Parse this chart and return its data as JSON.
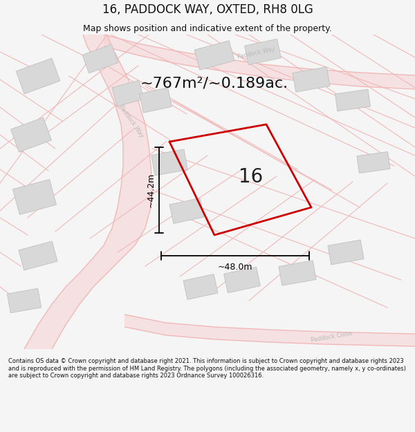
{
  "title": "16, PADDOCK WAY, OXTED, RH8 0LG",
  "subtitle": "Map shows position and indicative extent of the property.",
  "area_text": "~767m²/~0.189ac.",
  "dim_width": "~48.0m",
  "dim_height": "~44.2m",
  "property_number": "16",
  "footer": "Contains OS data © Crown copyright and database right 2021. This information is subject to Crown copyright and database rights 2023 and is reproduced with the permission of HM Land Registry. The polygons (including the associated geometry, namely x, y co-ordinates) are subject to Crown copyright and database rights 2023 Ordnance Survey 100026316.",
  "bg_color": "#f5f5f5",
  "map_bg": "#f9f9f9",
  "road_line_color": "#f0b8b8",
  "road_fill_color": "#f5d5d5",
  "building_color": "#d8d8d8",
  "building_edge": "#c0c0c0",
  "property_color": "#cc0000",
  "dim_color": "#000000",
  "title_color": "#111111",
  "road_label_color": "#aaaaaa",
  "area_text_size": 16,
  "title_size": 12,
  "subtitle_size": 9
}
